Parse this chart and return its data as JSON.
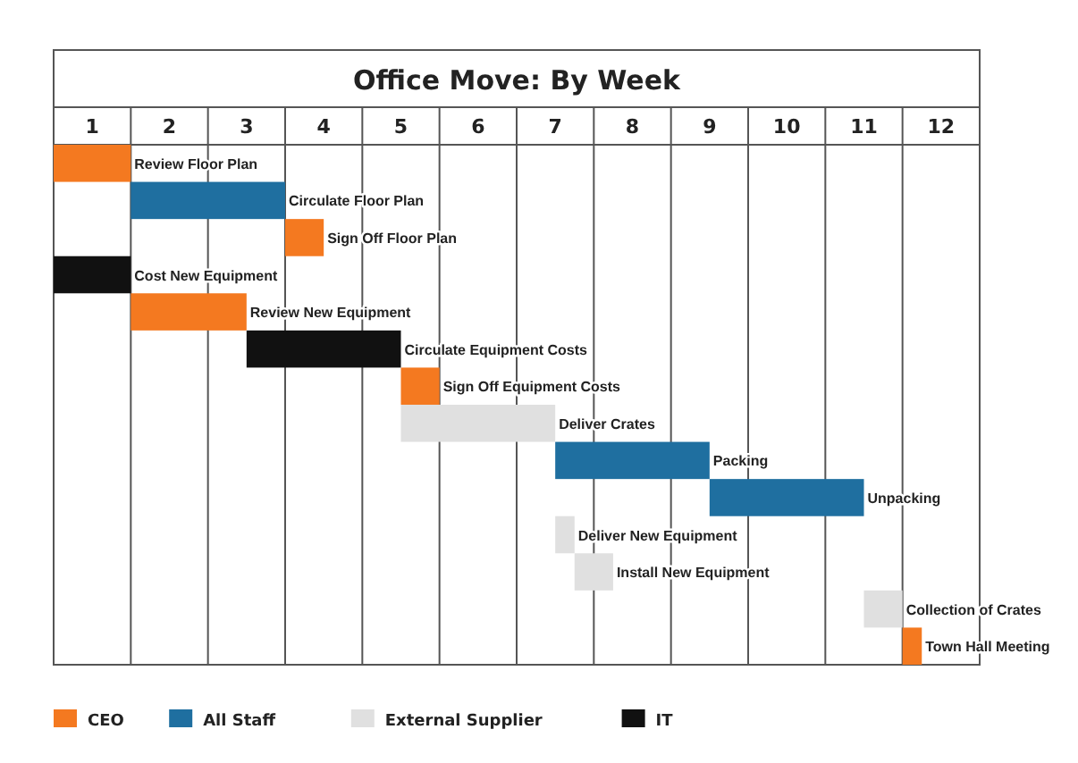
{
  "chart_data": {
    "type": "bar",
    "orientation": "horizontal",
    "title": "Office Move: By Week",
    "categories": [
      "Review Floor Plan",
      "Circulate Floor Plan",
      "Sign Off Floor Plan",
      "Cost New Equipment",
      "Review New Equipment",
      "Circulate Equipment Costs",
      "Sign Off Equipment Costs",
      "Deliver Crates",
      "Packing",
      "Unpacking",
      "Deliver New Equipment",
      "Install New Equipment",
      "Collection of Crates",
      "Town Hall Meeting"
    ],
    "series": [
      {
        "name": "CEO",
        "color": "#f47920",
        "base": [
          0,
          null,
          3,
          null,
          1,
          null,
          4.5,
          null,
          null,
          null,
          null,
          null,
          null,
          11
        ],
        "values": [
          1,
          null,
          0.5,
          null,
          1.5,
          null,
          0.5,
          null,
          null,
          null,
          null,
          null,
          null,
          0.25
        ]
      },
      {
        "name": "All Staff",
        "color": "#1f6fa0",
        "base": [
          null,
          1,
          null,
          null,
          null,
          null,
          null,
          null,
          6.5,
          8.5,
          null,
          null,
          null,
          null
        ],
        "values": [
          null,
          2,
          null,
          null,
          null,
          null,
          null,
          null,
          2,
          2,
          null,
          null,
          null,
          null
        ]
      },
      {
        "name": "External Supplier",
        "color": "#e0e0e0",
        "base": [
          null,
          null,
          null,
          null,
          null,
          null,
          null,
          4.5,
          null,
          null,
          6.5,
          6.75,
          10.5,
          null
        ],
        "values": [
          null,
          null,
          null,
          null,
          null,
          null,
          null,
          2,
          null,
          null,
          0.25,
          0.5,
          0.5,
          null
        ]
      },
      {
        "name": "IT",
        "color": "#111111",
        "base": [
          null,
          null,
          null,
          0,
          null,
          2.5,
          null,
          null,
          null,
          null,
          null,
          null,
          null,
          null
        ],
        "values": [
          null,
          null,
          null,
          1,
          null,
          2,
          null,
          null,
          null,
          null,
          null,
          null,
          null,
          null
        ]
      }
    ],
    "xlim": [
      0,
      12
    ],
    "xticks": [
      {
        "value": 0,
        "label": null
      },
      {
        "value": 0.5,
        "label": "1"
      },
      {
        "value": 1,
        "label": null
      },
      {
        "value": 1.5,
        "label": "2"
      },
      {
        "value": 2,
        "label": null
      },
      {
        "value": 2.5,
        "label": "3"
      },
      {
        "value": 3,
        "label": null
      },
      {
        "value": 3.5,
        "label": "4"
      },
      {
        "value": 4,
        "label": null
      },
      {
        "value": 4.5,
        "label": "5"
      },
      {
        "value": 5,
        "label": null
      },
      {
        "value": 5.5,
        "label": "6"
      },
      {
        "value": 6,
        "label": null
      },
      {
        "value": 6.5,
        "label": "7"
      },
      {
        "value": 7,
        "label": null
      },
      {
        "value": 7.5,
        "label": "8"
      },
      {
        "value": 8,
        "label": null
      },
      {
        "value": 8.5,
        "label": "9"
      },
      {
        "value": 9,
        "label": null
      },
      {
        "value": 9.5,
        "label": "10"
      },
      {
        "value": 10,
        "label": null
      },
      {
        "value": 10.5,
        "label": "11"
      },
      {
        "value": 11,
        "label": null
      },
      {
        "value": 11.5,
        "label": "12"
      },
      {
        "value": 12,
        "label": null
      }
    ],
    "grid": "x",
    "legend": "bottom"
  }
}
